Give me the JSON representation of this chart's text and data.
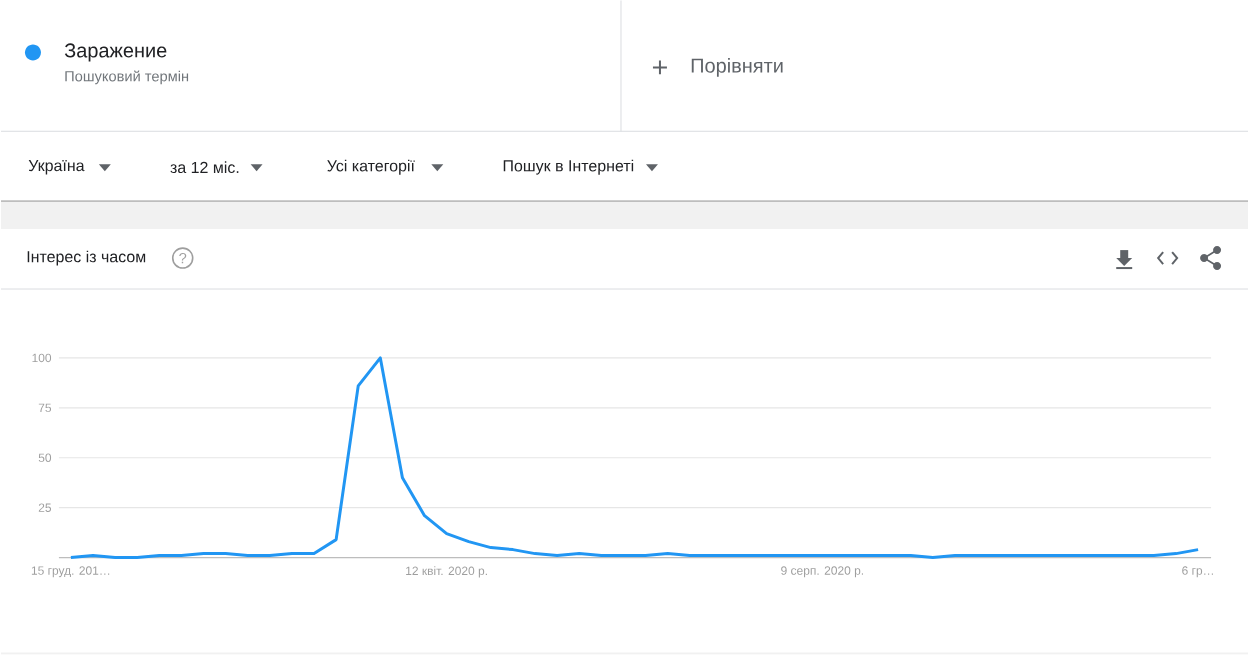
{
  "chart_data": {
    "type": "line",
    "title": "Інтерес із часом",
    "annotations": [
      "Пошуковий термін",
      "Порівняти",
      "Україна",
      "за 12 міс.",
      "Усі категорії",
      "Пошук в Інтернеті",
      "?"
    ],
    "categories": [
      "15 груд. 201…",
      null,
      null,
      null,
      null,
      null,
      null,
      null,
      null,
      null,
      null,
      null,
      null,
      null,
      null,
      null,
      null,
      "12 квіт. 2020 р.",
      null,
      null,
      null,
      null,
      null,
      null,
      null,
      null,
      null,
      null,
      null,
      null,
      null,
      null,
      null,
      null,
      "9 серп. 2020 р.",
      null,
      null,
      null,
      null,
      null,
      null,
      null,
      null,
      null,
      null,
      null,
      null,
      null,
      null,
      null,
      null,
      "6 гр…"
    ],
    "series": [
      {
        "name": "Заражение",
        "color": "#2196f3",
        "values": [
          0,
          1,
          0,
          0,
          1,
          1,
          2,
          2,
          1,
          1,
          2,
          2,
          9,
          86,
          100,
          40,
          21,
          12,
          8,
          5,
          4,
          2,
          1,
          2,
          1,
          1,
          1,
          2,
          1,
          1,
          1,
          1,
          1,
          1,
          1,
          1,
          1,
          1,
          1,
          0,
          1,
          1,
          1,
          1,
          1,
          1,
          1,
          1,
          1,
          1,
          2,
          4
        ]
      }
    ],
    "ylim": [
      0,
      100
    ],
    "yticks": [
      25,
      50,
      75,
      100
    ],
    "grid": "y",
    "legend": "top left"
  }
}
